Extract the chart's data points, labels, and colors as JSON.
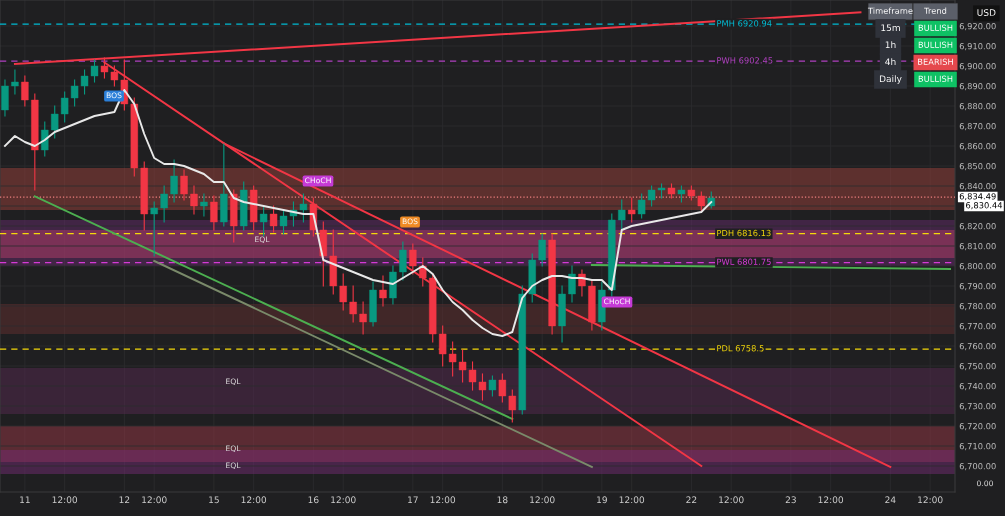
{
  "chart_data": [
    {
      "type": "candlestick",
      "grid": true,
      "categories": [
        null,
        null,
        "11",
        null,
        null,
        null,
        "12:00",
        null,
        null,
        null,
        null,
        null,
        "12",
        null,
        null,
        "12:00",
        null,
        null,
        null,
        null,
        null,
        "15",
        null,
        null,
        null,
        "12:00",
        null,
        null,
        null,
        null,
        null,
        "16",
        null,
        null,
        "12:00",
        null,
        null,
        null,
        null,
        null,
        null,
        "17",
        null,
        null,
        "12:00",
        null,
        null,
        null,
        null,
        null,
        "18",
        null,
        null,
        null,
        "12:00",
        null,
        null,
        null,
        null,
        null,
        "19",
        null,
        null,
        "12:00",
        null,
        null,
        null,
        null,
        null,
        "22",
        null,
        null,
        null,
        "12:00",
        null,
        null,
        null,
        null,
        null,
        "23",
        null,
        null,
        null,
        "12:00",
        null,
        null,
        null,
        null,
        null,
        "24",
        null,
        null,
        null,
        "12:00",
        null,
        null
      ],
      "ohlc": [
        [
          6878,
          6893,
          6875,
          6890
        ],
        [
          6890,
          6898,
          6886,
          6892
        ],
        [
          6892,
          6895,
          6880,
          6883
        ],
        [
          6883,
          6886,
          6838,
          6858
        ],
        [
          6858,
          6872,
          6855,
          6868
        ],
        [
          6868,
          6880,
          6864,
          6876
        ],
        [
          6876,
          6887,
          6872,
          6884
        ],
        [
          6884,
          6893,
          6880,
          6890
        ],
        [
          6890,
          6898,
          6886,
          6895
        ],
        [
          6895,
          6903,
          6892,
          6900
        ],
        [
          6900,
          6904,
          6894,
          6897
        ],
        [
          6897,
          6900,
          6890,
          6893
        ],
        [
          6893,
          6903,
          6878,
          6881
        ],
        [
          6881,
          6884,
          6845,
          6849
        ],
        [
          6849,
          6852,
          6818,
          6826
        ],
        [
          6826,
          6832,
          6805,
          6829
        ],
        [
          6829,
          6840,
          6822,
          6836
        ],
        [
          6836,
          6853,
          6832,
          6845
        ],
        [
          6845,
          6848,
          6833,
          6836
        ],
        [
          6836,
          6840,
          6826,
          6830
        ],
        [
          6830,
          6836,
          6825,
          6832
        ],
        [
          6832,
          6835,
          6818,
          6822
        ],
        [
          6822,
          6861,
          6820,
          6836
        ],
        [
          6836,
          6838,
          6812,
          6820
        ],
        [
          6820,
          6842,
          6818,
          6838
        ],
        [
          6838,
          6840,
          6818,
          6822
        ],
        [
          6822,
          6830,
          6815,
          6826
        ],
        [
          6826,
          6830,
          6817,
          6820
        ],
        [
          6820,
          6828,
          6816,
          6825
        ],
        [
          6825,
          6832,
          6820,
          6828
        ],
        [
          6828,
          6836,
          6822,
          6831
        ],
        [
          6831,
          6834,
          6815,
          6818
        ],
        [
          6818,
          6822,
          6790,
          6805
        ],
        [
          6805,
          6818,
          6786,
          6790
        ],
        [
          6790,
          6796,
          6778,
          6782
        ],
        [
          6782,
          6790,
          6772,
          6776
        ],
        [
          6776,
          6782,
          6766,
          6772
        ],
        [
          6772,
          6792,
          6770,
          6788
        ],
        [
          6788,
          6795,
          6780,
          6784
        ],
        [
          6784,
          6800,
          6781,
          6797
        ],
        [
          6797,
          6812,
          6793,
          6808
        ],
        [
          6808,
          6811,
          6796,
          6800
        ],
        [
          6800,
          6804,
          6790,
          6794
        ],
        [
          6794,
          6796,
          6762,
          6766
        ],
        [
          6766,
          6770,
          6750,
          6756
        ],
        [
          6756,
          6762,
          6745,
          6752
        ],
        [
          6752,
          6758,
          6742,
          6748
        ],
        [
          6748,
          6752,
          6738,
          6742
        ],
        [
          6742,
          6746,
          6733,
          6738
        ],
        [
          6738,
          6745,
          6735,
          6743
        ],
        [
          6743,
          6746,
          6732,
          6735
        ],
        [
          6735,
          6738,
          6722,
          6728
        ],
        [
          6728,
          6790,
          6726,
          6786
        ],
        [
          6786,
          6806,
          6782,
          6803
        ],
        [
          6803,
          6816,
          6800,
          6813
        ],
        [
          6813,
          6816,
          6766,
          6770
        ],
        [
          6770,
          6790,
          6762,
          6786
        ],
        [
          6786,
          6800,
          6782,
          6796
        ],
        [
          6796,
          6798,
          6785,
          6790
        ],
        [
          6790,
          6793,
          6768,
          6772
        ],
        [
          6772,
          6792,
          6768,
          6788
        ],
        [
          6788,
          6826,
          6785,
          6823
        ],
        [
          6823,
          6833,
          6818,
          6828
        ],
        [
          6828,
          6834,
          6822,
          6826
        ],
        [
          6826,
          6836,
          6824,
          6833
        ],
        [
          6833,
          6840,
          6830,
          6838
        ],
        [
          6838,
          6841,
          6834,
          6839
        ],
        [
          6839,
          6841,
          6834,
          6836
        ],
        [
          6836,
          6840,
          6832,
          6838
        ],
        [
          6838,
          6840,
          6833,
          6835
        ],
        [
          6835,
          6837,
          6827,
          6830
        ],
        [
          6830,
          6837,
          6829,
          6834
        ],
        null,
        null,
        null,
        null,
        null,
        null,
        null,
        null,
        null,
        null,
        null,
        null,
        null,
        null,
        null,
        null,
        null,
        null,
        null,
        null,
        null,
        null,
        null,
        null
      ],
      "series": [
        {
          "type": "line",
          "color": "#e8e8e8",
          "values": [
            6860,
            6865,
            6862,
            6860,
            6863,
            6867,
            6869,
            6871,
            6873,
            6875,
            6876,
            6877,
            6888,
            6881,
            6866,
            6854,
            6851,
            6851,
            6850,
            6848,
            6846,
            6842,
            6842,
            6834,
            6832,
            6831,
            6830,
            6829,
            6828,
            6827,
            6826,
            6826,
            6803,
            6801,
            6799,
            6797,
            6795,
            6793,
            6792,
            6791,
            6794,
            6797,
            6800,
            6796,
            6788,
            6782,
            6778,
            6773,
            6769,
            6766,
            6765,
            6767,
            6784,
            6790,
            6793,
            6795,
            6795,
            6794,
            6794,
            6793,
            6793,
            6788,
            6818,
            6820,
            6821,
            6822,
            6823,
            6824,
            6825,
            6826,
            6827,
            6832,
            null,
            null,
            null,
            null,
            null,
            null,
            null,
            null,
            null,
            null,
            null,
            null,
            null,
            null,
            null,
            null,
            null,
            null,
            null,
            null,
            null,
            null,
            null,
            null
          ]
        },
        {
          "type": "line",
          "color": "#f23645",
          "values": [
            null,
            6901,
            null,
            null,
            null,
            null,
            null,
            null,
            null,
            null,
            null,
            null,
            null,
            null,
            null,
            null,
            null,
            null,
            null,
            null,
            null,
            null,
            null,
            null,
            null,
            null,
            null,
            null,
            null,
            null,
            null,
            null,
            null,
            null,
            null,
            null,
            null,
            null,
            null,
            null,
            null,
            null,
            null,
            null,
            null,
            null,
            null,
            null,
            null,
            null,
            null,
            null,
            null,
            null,
            null,
            null,
            null,
            null,
            null,
            null,
            null,
            null,
            null,
            null,
            null,
            null,
            null,
            null,
            null,
            null,
            null,
            null,
            null,
            null,
            null,
            null,
            null,
            null,
            null,
            null,
            null,
            null,
            null,
            null,
            null,
            null,
            6926.8,
            null,
            null,
            null,
            null,
            null,
            null,
            null,
            null,
            null
          ]
        },
        {
          "type": "line",
          "color": "#f23645",
          "values": [
            null,
            null,
            null,
            null,
            null,
            null,
            null,
            null,
            null,
            null,
            6901.7,
            null,
            null,
            null,
            null,
            null,
            null,
            null,
            null,
            null,
            null,
            null,
            null,
            null,
            null,
            null,
            null,
            null,
            null,
            null,
            null,
            null,
            null,
            null,
            null,
            null,
            null,
            null,
            null,
            null,
            null,
            null,
            null,
            null,
            null,
            null,
            null,
            null,
            null,
            null,
            null,
            null,
            null,
            null,
            null,
            null,
            null,
            null,
            null,
            null,
            null,
            null,
            null,
            null,
            null,
            null,
            null,
            null,
            null,
            null,
            6700,
            null,
            null,
            null,
            null,
            null,
            null,
            null,
            null,
            null,
            null,
            null,
            null,
            null,
            null,
            null,
            null,
            null,
            null,
            null,
            null,
            null,
            null,
            null,
            null,
            null
          ]
        },
        {
          "type": "line",
          "color": "#f23645",
          "values": [
            null,
            null,
            null,
            null,
            null,
            null,
            null,
            null,
            null,
            null,
            null,
            null,
            null,
            null,
            null,
            null,
            null,
            null,
            null,
            null,
            null,
            null,
            6861.3,
            null,
            null,
            null,
            null,
            null,
            null,
            null,
            null,
            null,
            null,
            null,
            null,
            null,
            null,
            null,
            null,
            null,
            null,
            null,
            null,
            null,
            null,
            null,
            null,
            null,
            null,
            null,
            null,
            null,
            null,
            null,
            null,
            null,
            null,
            null,
            null,
            null,
            null,
            null,
            null,
            null,
            null,
            null,
            null,
            null,
            null,
            null,
            null,
            null,
            null,
            null,
            null,
            null,
            null,
            null,
            null,
            null,
            null,
            null,
            null,
            null,
            null,
            null,
            null,
            null,
            null,
            6699.5,
            null,
            null,
            null,
            null,
            null,
            null
          ]
        },
        {
          "type": "line",
          "color": "#4caf50",
          "values": [
            null,
            null,
            null,
            6834.8,
            null,
            null,
            null,
            null,
            null,
            null,
            null,
            null,
            null,
            null,
            null,
            null,
            null,
            null,
            null,
            null,
            null,
            null,
            null,
            null,
            null,
            null,
            null,
            null,
            null,
            null,
            null,
            null,
            null,
            null,
            null,
            null,
            null,
            null,
            null,
            null,
            null,
            null,
            null,
            null,
            null,
            null,
            null,
            null,
            null,
            null,
            null,
            6723.5,
            null,
            null,
            null,
            null,
            null,
            null,
            null,
            null,
            null,
            null,
            null,
            null,
            null,
            null,
            null,
            null,
            null,
            null,
            null,
            null,
            null,
            null,
            null,
            null,
            null,
            null,
            null,
            null,
            null,
            null,
            null,
            null,
            null,
            null,
            null,
            null,
            null,
            null,
            null,
            null,
            null,
            null,
            null,
            null
          ]
        },
        {
          "type": "line",
          "color": "#7a8a6a",
          "values": [
            null,
            null,
            null,
            null,
            null,
            null,
            null,
            null,
            null,
            null,
            null,
            null,
            null,
            null,
            null,
            6802.5,
            null,
            null,
            null,
            null,
            null,
            null,
            null,
            null,
            null,
            null,
            null,
            null,
            null,
            null,
            null,
            null,
            null,
            null,
            null,
            null,
            null,
            null,
            null,
            null,
            null,
            null,
            null,
            null,
            null,
            null,
            null,
            null,
            null,
            null,
            null,
            null,
            null,
            null,
            null,
            null,
            null,
            null,
            null,
            6699.5,
            null,
            null,
            null,
            null,
            null,
            null,
            null,
            null,
            null,
            null,
            null,
            null,
            null,
            null,
            null,
            null,
            null,
            null,
            null,
            null,
            null,
            null,
            null,
            null,
            null,
            null,
            null,
            null,
            null,
            null,
            null,
            null,
            null,
            null,
            null,
            null
          ]
        },
        {
          "type": "line",
          "color": "#4caf50",
          "values": [
            null,
            null,
            null,
            null,
            null,
            null,
            null,
            null,
            null,
            null,
            null,
            null,
            null,
            null,
            null,
            null,
            null,
            null,
            null,
            null,
            null,
            null,
            null,
            null,
            null,
            null,
            null,
            null,
            null,
            null,
            null,
            null,
            null,
            null,
            null,
            null,
            null,
            null,
            null,
            null,
            null,
            null,
            null,
            null,
            null,
            null,
            null,
            null,
            null,
            null,
            null,
            null,
            null,
            null,
            null,
            null,
            null,
            null,
            null,
            6800.5,
            null,
            null,
            null,
            null,
            null,
            null,
            null,
            null,
            null,
            null,
            null,
            null,
            null,
            null,
            null,
            null,
            null,
            null,
            null,
            null,
            null,
            null,
            null,
            null,
            null,
            null,
            null,
            null,
            null,
            null,
            null,
            null,
            null,
            null,
            null,
            6798.5
          ]
        }
      ],
      "ylim": [
        6687,
        6933
      ],
      "yticks": [
        {
          "value": 6700,
          "label": "6,700.00"
        },
        {
          "value": 6710,
          "label": "6,710.00"
        },
        {
          "value": 6720,
          "label": "6,720.00"
        },
        {
          "value": 6730,
          "label": "6,730.00"
        },
        {
          "value": 6740,
          "label": "6,740.00"
        },
        {
          "value": 6750,
          "label": "6,750.00"
        },
        {
          "value": 6760,
          "label": "6,760.00"
        },
        {
          "value": 6770,
          "label": "6,770.00"
        },
        {
          "value": 6780,
          "label": "6,780.00"
        },
        {
          "value": 6790,
          "label": "6,790.00"
        },
        {
          "value": 6800,
          "label": "6,800.00"
        },
        {
          "value": 6810,
          "label": "6,810.00"
        },
        {
          "value": 6820,
          "label": "6,820.00"
        },
        {
          "value": 6830,
          "label": null
        },
        {
          "value": 6840,
          "label": "6,840.00"
        },
        {
          "value": 6850,
          "label": "6,850.00"
        },
        {
          "value": 6860,
          "label": "6,860.00"
        },
        {
          "value": 6870,
          "label": "6,870.00"
        },
        {
          "value": 6880,
          "label": "6,880.00"
        },
        {
          "value": 6890,
          "label": "6,890.00"
        },
        {
          "value": 6900,
          "label": "6,900.00"
        },
        {
          "value": 6910,
          "label": "6,910.00"
        },
        {
          "value": 6920,
          "label": "6,920.00"
        }
      ],
      "bands": [
        {
          "axis": "y",
          "from": 6828,
          "to": 6849,
          "color": "#a8443e"
        },
        {
          "axis": "y",
          "from": 6800,
          "to": 6823,
          "color": "#6a2c70"
        },
        {
          "axis": "y",
          "from": 6804,
          "to": 6818,
          "color": "#c2406b"
        },
        {
          "axis": "y",
          "from": 6766,
          "to": 6781,
          "color": "#6b3030"
        },
        {
          "axis": "y",
          "from": 6726,
          "to": 6749,
          "color": "#5c2a55"
        },
        {
          "axis": "y",
          "from": 6702,
          "to": 6720,
          "color": "#a33a4a"
        },
        {
          "axis": "y",
          "from": 6696,
          "to": 6708,
          "color": "#7a2c7a"
        }
      ],
      "ref_lines": [
        {
          "axis": "y",
          "value": 6920.94,
          "label": "PMH 6920.94",
          "color": "#00bcd4",
          "line_style": "dashed"
        },
        {
          "axis": "y",
          "value": 6902.45,
          "label": "PWH 6902.45",
          "color": "#b040c0",
          "line_style": "dashed"
        },
        {
          "axis": "y",
          "value": 6816.13,
          "label": "PDH 6816.13",
          "color": "#f5d90a",
          "line_style": "dashed"
        },
        {
          "axis": "y",
          "value": 6801.75,
          "label": "PWL 6801.75",
          "color": "#d63ad6",
          "line_style": "dashed"
        },
        {
          "axis": "y",
          "value": 6758.5,
          "label": "PDL 6758.5",
          "color": "#f5d90a",
          "line_style": "dashed"
        },
        {
          "axis": "y",
          "value": 6834.49,
          "label": "6,834.49",
          "color": "#f08080",
          "line_style": "dotted"
        }
      ],
      "annotations": [
        "USD",
        "0.00",
        "6,830.44",
        "BOS",
        "CHoCH",
        "BOS",
        "CHoCH",
        "EQL",
        "EQL",
        "EQL",
        "EQL"
      ]
    },
    {
      "type": "other",
      "annotations": [
        "Timeframe",
        "Trend"
      ],
      "categories": [
        "15m",
        "1h",
        "4h",
        "Daily"
      ],
      "cell_labels": [
        "BULLISH",
        "BULLISH",
        "BEARISH",
        "BULLISH"
      ],
      "colors": [
        "#0ec164",
        "#0ec164",
        "#e5484d",
        "#0ec164"
      ]
    }
  ]
}
